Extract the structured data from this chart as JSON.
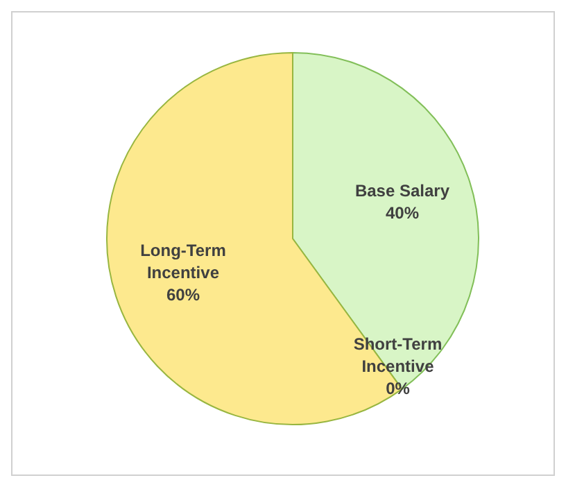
{
  "chart_data": {
    "type": "pie",
    "categories": [
      "Base Salary",
      "Short-Term Incentive",
      "Long-Term Incentive"
    ],
    "values": [
      40,
      0,
      60
    ],
    "colors": [
      "#d8f5c6",
      "#c9dff2",
      "#fde98e"
    ],
    "value_labels": [
      "40%",
      "0%",
      "60%"
    ],
    "legend": false
  }
}
